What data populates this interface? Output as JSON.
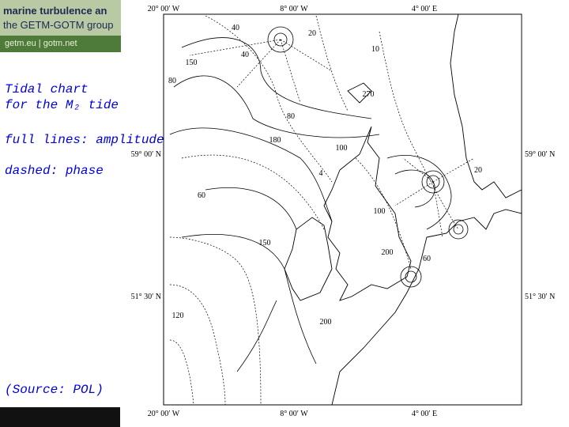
{
  "header": {
    "title": "marine turbulence an",
    "subtitle": "the GETM-GOTM group",
    "links": "getm.eu | gotm.net"
  },
  "slide": {
    "title_line1": "Tidal chart",
    "title_line2": "for the M₂ tide",
    "legend_full": "full lines: amplitude",
    "legend_dashed": "dashed: phase",
    "source": "(Source: POL)"
  },
  "map": {
    "lon_labels": [
      "20° 00′ W",
      "8° 00′ W",
      "4° 00′ E"
    ],
    "lat_labels": [
      "59° 00′ N",
      "51° 30′ N"
    ],
    "contour_labels": [
      "40",
      "20",
      "40",
      "10",
      "150",
      "80",
      "270",
      "80",
      "180",
      "100",
      "4",
      "60",
      "150",
      "120",
      "200",
      "60",
      "20",
      "100",
      "200"
    ]
  }
}
